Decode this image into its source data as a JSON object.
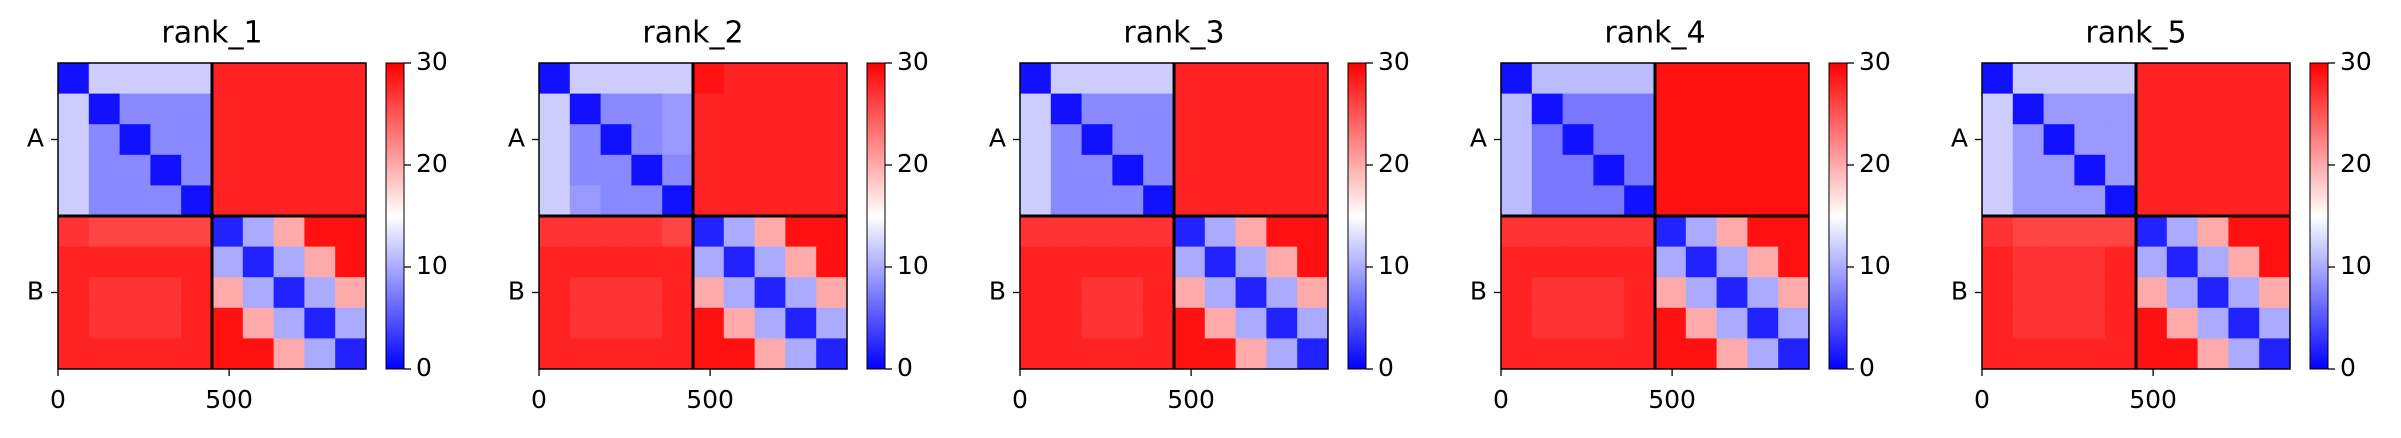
{
  "chart_data": [
    {
      "type": "heatmap",
      "title": "rank_1",
      "cmap": "bwr",
      "clim": [
        0,
        30
      ],
      "cbar_ticks": [
        0,
        10,
        20,
        30
      ],
      "xlim": [
        0,
        900
      ],
      "ylim": [
        900,
        0
      ],
      "xticks": [
        0,
        500
      ],
      "y_categories": [
        "A",
        "B"
      ],
      "chain_breaks": [
        450
      ],
      "bins": [
        0,
        90,
        180,
        270,
        360,
        450,
        540,
        630,
        720,
        810,
        900
      ],
      "values": [
        [
          1,
          12,
          12,
          12,
          12,
          28,
          28,
          28,
          28,
          28
        ],
        [
          12,
          1,
          8,
          8,
          8,
          28,
          28,
          28,
          28,
          28
        ],
        [
          12,
          8,
          1,
          8,
          8,
          28,
          28,
          28,
          28,
          28
        ],
        [
          12,
          8,
          8,
          1,
          8,
          28,
          28,
          28,
          28,
          28
        ],
        [
          12,
          8,
          8,
          8,
          1,
          28,
          28,
          28,
          28,
          28
        ],
        [
          27,
          26,
          26,
          26,
          26,
          2,
          10,
          20,
          29,
          29
        ],
        [
          28,
          28,
          28,
          28,
          28,
          10,
          2,
          10,
          20,
          29
        ],
        [
          28,
          27,
          27,
          27,
          28,
          20,
          10,
          2,
          10,
          20
        ],
        [
          28,
          27,
          27,
          27,
          28,
          29,
          20,
          10,
          2,
          10
        ],
        [
          28,
          28,
          28,
          28,
          28,
          29,
          29,
          20,
          10,
          2
        ]
      ]
    },
    {
      "type": "heatmap",
      "title": "rank_2",
      "cmap": "bwr",
      "clim": [
        0,
        30
      ],
      "cbar_ticks": [
        0,
        10,
        20,
        30
      ],
      "xlim": [
        0,
        900
      ],
      "ylim": [
        900,
        0
      ],
      "xticks": [
        0,
        500
      ],
      "y_categories": [
        "A",
        "B"
      ],
      "chain_breaks": [
        450
      ],
      "bins": [
        0,
        90,
        180,
        270,
        360,
        450,
        540,
        630,
        720,
        810,
        900
      ],
      "values": [
        [
          1,
          12,
          12,
          12,
          12,
          29,
          28,
          28,
          28,
          28
        ],
        [
          12,
          1,
          8,
          8,
          9,
          28,
          28,
          28,
          28,
          28
        ],
        [
          12,
          8,
          1,
          8,
          9,
          28,
          28,
          28,
          28,
          28
        ],
        [
          12,
          8,
          8,
          1,
          8,
          28,
          28,
          28,
          28,
          28
        ],
        [
          12,
          9,
          8,
          8,
          1,
          28,
          28,
          28,
          28,
          28
        ],
        [
          27,
          27,
          27,
          27,
          26,
          2,
          10,
          20,
          29,
          29
        ],
        [
          28,
          28,
          28,
          28,
          28,
          10,
          2,
          10,
          20,
          29
        ],
        [
          28,
          27,
          27,
          27,
          28,
          20,
          10,
          2,
          10,
          20
        ],
        [
          28,
          27,
          27,
          27,
          28,
          29,
          20,
          10,
          2,
          10
        ],
        [
          28,
          28,
          28,
          28,
          28,
          29,
          29,
          20,
          10,
          2
        ]
      ]
    },
    {
      "type": "heatmap",
      "title": "rank_3",
      "cmap": "bwr",
      "clim": [
        0,
        30
      ],
      "cbar_ticks": [
        0,
        10,
        20,
        30
      ],
      "xlim": [
        0,
        900
      ],
      "ylim": [
        900,
        0
      ],
      "xticks": [
        0,
        500
      ],
      "y_categories": [
        "A",
        "B"
      ],
      "chain_breaks": [
        450
      ],
      "bins": [
        0,
        90,
        180,
        270,
        360,
        450,
        540,
        630,
        720,
        810,
        900
      ],
      "values": [
        [
          1,
          12,
          12,
          12,
          12,
          28,
          28,
          28,
          28,
          28
        ],
        [
          12,
          1,
          8,
          8,
          8,
          28,
          28,
          28,
          28,
          28
        ],
        [
          12,
          8,
          1,
          8,
          8,
          28,
          28,
          28,
          28,
          28
        ],
        [
          12,
          8,
          8,
          1,
          8,
          28,
          28,
          28,
          28,
          28
        ],
        [
          12,
          8,
          8,
          8,
          1,
          28,
          28,
          28,
          28,
          28
        ],
        [
          27,
          27,
          27,
          27,
          27,
          2,
          10,
          20,
          29,
          29
        ],
        [
          28,
          28,
          28,
          28,
          28,
          10,
          2,
          10,
          20,
          29
        ],
        [
          28,
          28,
          27,
          27,
          28,
          20,
          10,
          2,
          10,
          20
        ],
        [
          28,
          28,
          27,
          27,
          28,
          29,
          20,
          10,
          2,
          10
        ],
        [
          28,
          28,
          28,
          28,
          28,
          29,
          29,
          20,
          10,
          2
        ]
      ]
    },
    {
      "type": "heatmap",
      "title": "rank_4",
      "cmap": "bwr",
      "clim": [
        0,
        30
      ],
      "cbar_ticks": [
        0,
        10,
        20,
        30
      ],
      "xlim": [
        0,
        900
      ],
      "ylim": [
        900,
        0
      ],
      "xticks": [
        0,
        500
      ],
      "y_categories": [
        "A",
        "B"
      ],
      "chain_breaks": [
        450
      ],
      "bins": [
        0,
        90,
        180,
        270,
        360,
        450,
        540,
        630,
        720,
        810,
        900
      ],
      "values": [
        [
          1,
          11,
          11,
          11,
          11,
          29,
          29,
          29,
          29,
          29
        ],
        [
          11,
          1,
          7,
          7,
          7,
          29,
          29,
          29,
          29,
          29
        ],
        [
          11,
          7,
          1,
          7,
          7,
          29,
          29,
          29,
          29,
          29
        ],
        [
          11,
          7,
          7,
          1,
          7,
          29,
          29,
          29,
          29,
          29
        ],
        [
          11,
          7,
          7,
          7,
          1,
          29,
          29,
          29,
          29,
          29
        ],
        [
          27,
          27,
          27,
          27,
          27,
          2,
          10,
          20,
          29,
          29
        ],
        [
          28,
          28,
          28,
          28,
          28,
          10,
          2,
          10,
          20,
          29
        ],
        [
          28,
          27,
          27,
          27,
          28,
          20,
          10,
          2,
          10,
          20
        ],
        [
          28,
          27,
          27,
          27,
          28,
          29,
          20,
          10,
          2,
          10
        ],
        [
          28,
          28,
          28,
          28,
          28,
          29,
          29,
          20,
          10,
          2
        ]
      ]
    },
    {
      "type": "heatmap",
      "title": "rank_5",
      "cmap": "bwr",
      "clim": [
        0,
        30
      ],
      "cbar_ticks": [
        0,
        10,
        20,
        30
      ],
      "xlim": [
        0,
        900
      ],
      "ylim": [
        900,
        0
      ],
      "xticks": [
        0,
        500
      ],
      "y_categories": [
        "A",
        "B"
      ],
      "chain_breaks": [
        450
      ],
      "bins": [
        0,
        90,
        180,
        270,
        360,
        450,
        540,
        630,
        720,
        810,
        900
      ],
      "values": [
        [
          1,
          12,
          12,
          12,
          12,
          28,
          28,
          28,
          28,
          28
        ],
        [
          12,
          1,
          9,
          9,
          9,
          28,
          28,
          28,
          28,
          28
        ],
        [
          12,
          9,
          1,
          9,
          9,
          28,
          28,
          28,
          28,
          28
        ],
        [
          12,
          9,
          9,
          1,
          9,
          28,
          28,
          28,
          28,
          28
        ],
        [
          12,
          9,
          9,
          9,
          1,
          28,
          28,
          28,
          28,
          28
        ],
        [
          27,
          26,
          26,
          26,
          26,
          2,
          10,
          20,
          29,
          29
        ],
        [
          28,
          27,
          27,
          27,
          28,
          10,
          2,
          10,
          20,
          29
        ],
        [
          28,
          27,
          27,
          27,
          28,
          20,
          10,
          2,
          10,
          20
        ],
        [
          28,
          27,
          27,
          27,
          28,
          29,
          20,
          10,
          2,
          10
        ],
        [
          28,
          28,
          28,
          28,
          28,
          29,
          29,
          20,
          10,
          2
        ]
      ]
    }
  ]
}
